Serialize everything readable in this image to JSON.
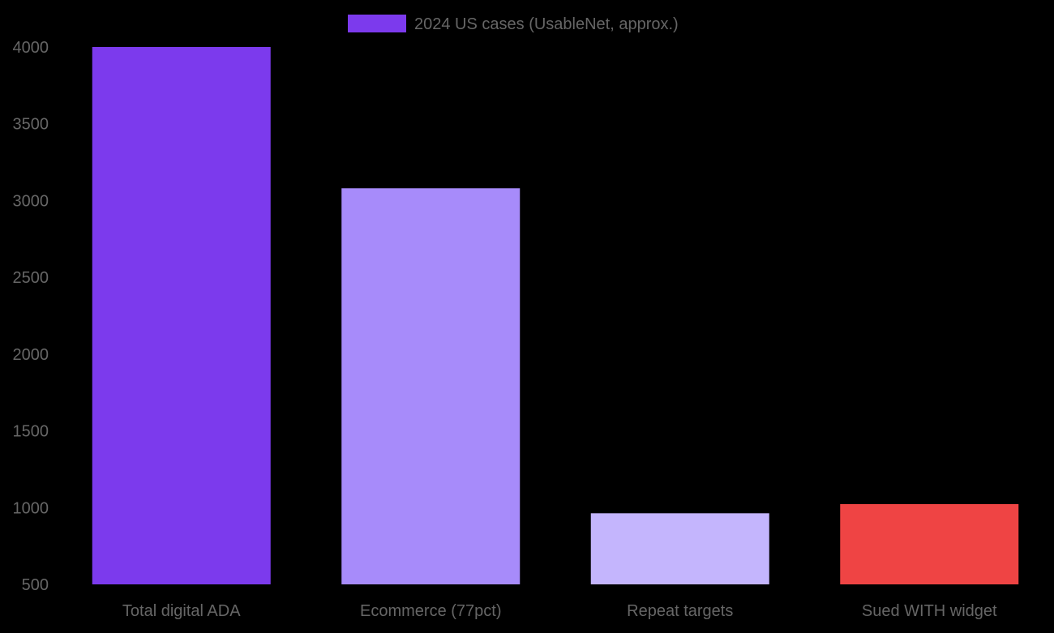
{
  "chart_data": {
    "type": "bar",
    "categories": [
      "Total digital ADA",
      "Ecommerce (77pct)",
      "Repeat targets",
      "Sued WITH widget"
    ],
    "series": [
      {
        "name": "2024 US cases (UsableNet, approx.)",
        "values": [
          4000,
          3080,
          963,
          1023
        ],
        "colors": [
          "#7c3aed",
          "#a78bfa",
          "#c4b5fd",
          "#ef4444"
        ]
      }
    ],
    "legend_color": "#7c3aed",
    "legend_position": "top-center",
    "ylim": [
      500,
      4000
    ],
    "yticks": [
      "500",
      "1000",
      "1500",
      "2000",
      "2500",
      "3000",
      "3500",
      "4000"
    ],
    "grid": false,
    "text_color": "#666666",
    "background": "#000000"
  }
}
